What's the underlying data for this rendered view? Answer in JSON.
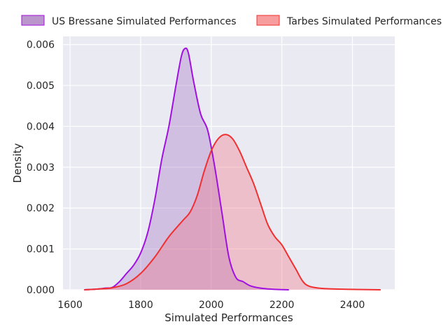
{
  "chart_data": {
    "type": "area",
    "subtype": "kde",
    "title": "",
    "xlabel": "Simulated Performances",
    "ylabel": "Density",
    "xlim": [
      1580,
      2520
    ],
    "ylim": [
      0,
      0.0062
    ],
    "xticks": [
      1600,
      1800,
      2000,
      2200,
      2400
    ],
    "yticks": [
      0,
      0.001,
      0.002,
      0.003,
      0.004,
      0.005,
      0.006
    ],
    "xtick_labels": [
      "1600",
      "1800",
      "2000",
      "2200",
      "2400"
    ],
    "ytick_labels": [
      "0.000",
      "0.001",
      "0.002",
      "0.003",
      "0.004",
      "0.005",
      "0.006"
    ],
    "grid": true,
    "legend_position": "top",
    "background": "#eaeaf2",
    "series": [
      {
        "name": "US Bressane Simulated Performances",
        "line_color": "#a010e0",
        "fill_color": "#a070c0",
        "legend_fill": "#bb96cc",
        "points": [
          [
            1640,
            0.0
          ],
          [
            1680,
            2e-05
          ],
          [
            1700,
            4e-05
          ],
          [
            1720,
            6e-05
          ],
          [
            1740,
            0.0002
          ],
          [
            1760,
            0.0004
          ],
          [
            1780,
            0.0006
          ],
          [
            1800,
            0.0009
          ],
          [
            1820,
            0.0014
          ],
          [
            1840,
            0.0022
          ],
          [
            1860,
            0.0032
          ],
          [
            1880,
            0.004
          ],
          [
            1900,
            0.005
          ],
          [
            1915,
            0.0057
          ],
          [
            1925,
            0.0059
          ],
          [
            1935,
            0.0058
          ],
          [
            1950,
            0.0051
          ],
          [
            1970,
            0.0043
          ],
          [
            1990,
            0.0039
          ],
          [
            2010,
            0.003
          ],
          [
            2030,
            0.0019
          ],
          [
            2050,
            0.0008
          ],
          [
            2070,
            0.0003
          ],
          [
            2090,
            0.0002
          ],
          [
            2110,
            0.0001
          ],
          [
            2140,
            4e-05
          ],
          [
            2180,
            1e-05
          ],
          [
            2220,
            0.0
          ]
        ]
      },
      {
        "name": "Tarbes Simulated Performances",
        "line_color": "#f03030",
        "fill_color": "#f07080",
        "legend_fill": "#f89d9d",
        "points": [
          [
            1640,
            0.0
          ],
          [
            1680,
            2e-05
          ],
          [
            1720,
            5e-05
          ],
          [
            1760,
            0.00015
          ],
          [
            1800,
            0.0004
          ],
          [
            1840,
            0.0008
          ],
          [
            1880,
            0.0013
          ],
          [
            1920,
            0.0017
          ],
          [
            1940,
            0.0019
          ],
          [
            1960,
            0.0023
          ],
          [
            1980,
            0.0029
          ],
          [
            2000,
            0.0034
          ],
          [
            2020,
            0.0037
          ],
          [
            2040,
            0.0038
          ],
          [
            2060,
            0.0037
          ],
          [
            2080,
            0.0034
          ],
          [
            2100,
            0.003
          ],
          [
            2120,
            0.0026
          ],
          [
            2140,
            0.0021
          ],
          [
            2160,
            0.0016
          ],
          [
            2180,
            0.0013
          ],
          [
            2200,
            0.0011
          ],
          [
            2220,
            0.0008
          ],
          [
            2240,
            0.0005
          ],
          [
            2260,
            0.0002
          ],
          [
            2280,
            8e-05
          ],
          [
            2320,
            3e-05
          ],
          [
            2400,
            1e-05
          ],
          [
            2480,
            0.0
          ]
        ]
      }
    ]
  }
}
